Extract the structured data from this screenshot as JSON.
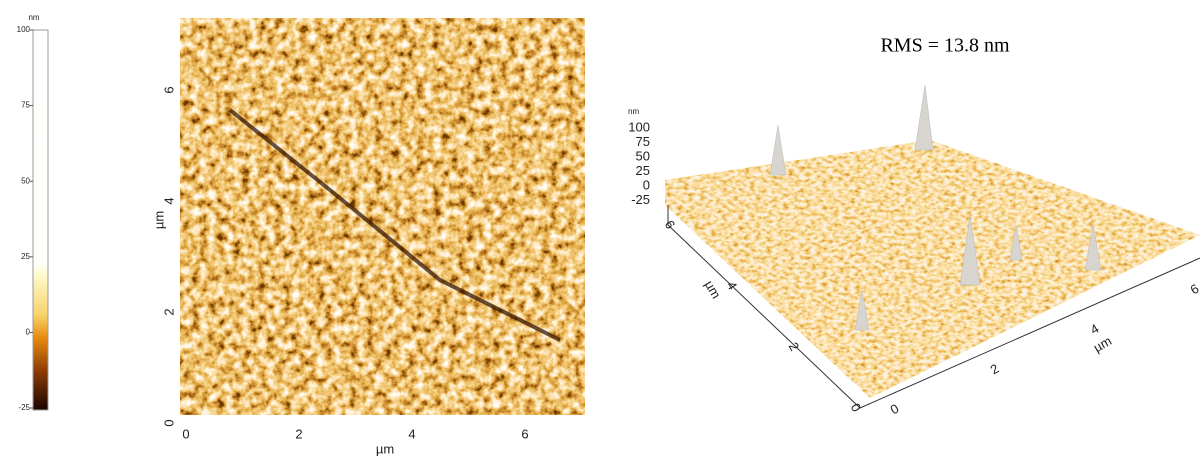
{
  "colorbar": {
    "unit": "nm",
    "ticks": [
      "100",
      "75",
      "50",
      "25",
      "0",
      "-25"
    ]
  },
  "height_image": {
    "x_label": "µm",
    "y_label": "µm",
    "x_ticks": [
      "0",
      "2",
      "4",
      "6"
    ],
    "y_ticks": [
      "0",
      "2",
      "4",
      "6"
    ]
  },
  "surface_3d": {
    "annotation": "RMS = 13.8 nm",
    "z_unit": "nm",
    "z_ticks": [
      "100",
      "75",
      "50",
      "25",
      "0",
      "-25"
    ],
    "x_label": "µm",
    "y_label": "µm",
    "x_ticks": [
      "0",
      "2",
      "4",
      "6"
    ],
    "y_ticks": [
      "0",
      "2",
      "4",
      "6"
    ]
  }
}
